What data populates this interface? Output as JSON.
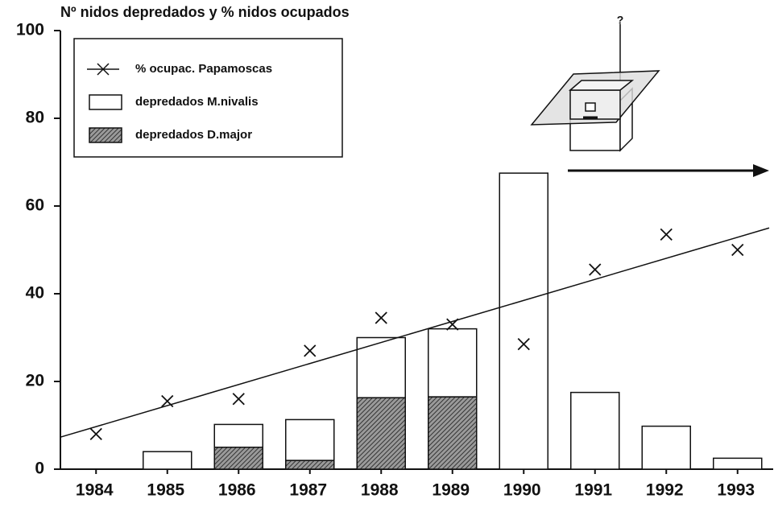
{
  "chart_data": {
    "type": "bar",
    "stacked": true,
    "title": "Nº nidos depredados y % nidos ocupados",
    "annotation": "?",
    "categories": [
      "1984",
      "1985",
      "1986",
      "1987",
      "1988",
      "1989",
      "1990",
      "1991",
      "1992",
      "1993"
    ],
    "series": [
      {
        "name": "% ocupac. Papamoscas",
        "type": "scatter",
        "color": "#111111",
        "values": [
          8,
          15.5,
          16,
          27,
          34.5,
          33,
          28.5,
          45.5,
          53.5,
          50
        ]
      },
      {
        "name": "depredados M.nivalis",
        "type": "bar",
        "color": "#ffffff",
        "values": [
          0,
          4,
          5.2,
          9.3,
          13.7,
          15.5,
          67.5,
          17.5,
          9.8,
          2.5
        ]
      },
      {
        "name": "depredados D.major",
        "type": "bar",
        "color": "#666666",
        "hatched": true,
        "values": [
          0,
          0,
          5,
          2,
          16.3,
          16.5,
          0,
          0,
          0,
          0
        ]
      }
    ],
    "trendline": {
      "start": 7.3,
      "end": 55
    },
    "ylim": [
      0,
      100
    ],
    "yticks": [
      0,
      20,
      40,
      60,
      80,
      100
    ],
    "grid": false
  }
}
